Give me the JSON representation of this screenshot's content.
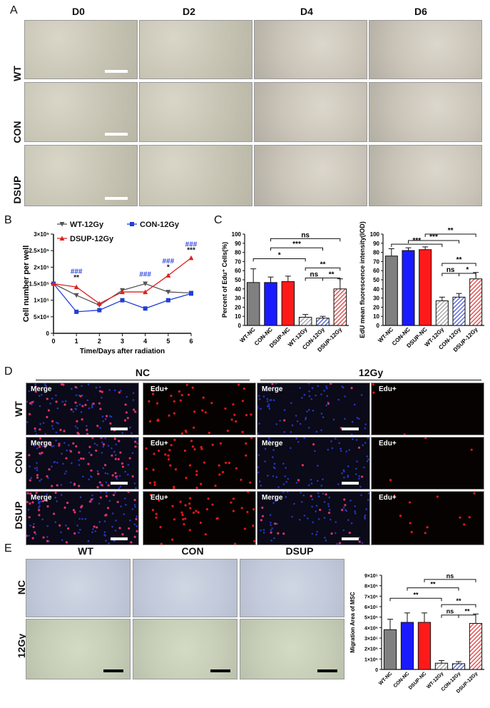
{
  "panels": {
    "A": {
      "letter": "A",
      "cols": [
        "D0",
        "D2",
        "D4",
        "D6"
      ],
      "rows": [
        "WT",
        "CON",
        "DSUP"
      ]
    },
    "B": {
      "letter": "B"
    },
    "C": {
      "letter": "C"
    },
    "D": {
      "letter": "D",
      "groups": [
        "NC",
        "12Gy"
      ],
      "rows": [
        "WT",
        "CON",
        "DSUP"
      ],
      "labels": [
        "Merge",
        "Edu+",
        "Merge",
        "Edu+"
      ]
    },
    "E": {
      "letter": "E",
      "cols": [
        "WT",
        "CON",
        "DSUP"
      ],
      "rows": [
        "NC",
        "12Gy"
      ]
    }
  },
  "chart_data": [
    {
      "id": "B",
      "type": "line",
      "xlabel": "Time/Days after radiation",
      "ylabel": "Cell number per well",
      "x": [
        0,
        1,
        2,
        3,
        4,
        5,
        6
      ],
      "xlim": [
        0,
        6
      ],
      "ylim": [
        0,
        300000
      ],
      "yticks": [
        "0",
        "5×10⁴",
        "1×10⁵",
        "1.5×10⁵",
        "2×10⁵",
        "2.5×10⁵",
        "3×10⁵"
      ],
      "ytick_values": [
        0,
        50000,
        100000,
        150000,
        200000,
        250000,
        300000
      ],
      "legend": "top",
      "series": [
        {
          "name": "WT-12Gy",
          "color": "#555555",
          "marker": "triangle-down",
          "values": [
            150000,
            115000,
            85000,
            130000,
            150000,
            125000,
            122000
          ]
        },
        {
          "name": "CON-12Gy",
          "color": "#1f3fd6",
          "marker": "square",
          "values": [
            150000,
            65000,
            70000,
            100000,
            75000,
            100000,
            120000
          ]
        },
        {
          "name": "DSUP-12Gy",
          "color": "#e02020",
          "marker": "triangle-up",
          "values": [
            150000,
            140000,
            90000,
            125000,
            125000,
            175000,
            228000
          ]
        }
      ],
      "annotations": [
        {
          "x": 1,
          "text": "###",
          "color": "#2a3fe0",
          "level": 180000
        },
        {
          "x": 1,
          "text": "**",
          "color": "#111111",
          "level": 162000
        },
        {
          "x": 4,
          "text": "###",
          "color": "#2a3fe0",
          "level": 172000
        },
        {
          "x": 5,
          "text": "###",
          "color": "#2a3fe0",
          "level": 212000
        },
        {
          "x": 5,
          "text": "*",
          "color": "#111111",
          "level": 193000
        },
        {
          "x": 6,
          "text": "###",
          "color": "#2a3fe0",
          "level": 262000
        },
        {
          "x": 6,
          "text": "***",
          "color": "#111111",
          "level": 245000
        }
      ]
    },
    {
      "id": "C1",
      "type": "bar",
      "ylabel": "Percent of Edu⁺ Cells(%)",
      "ylim": [
        0,
        100
      ],
      "yticks": [
        "0",
        "10",
        "20",
        "30",
        "40",
        "50",
        "60",
        "70",
        "80",
        "90",
        "100"
      ],
      "categories": [
        "WT-NC",
        "CON-NC",
        "DSUP-NC",
        "WT-12Gy",
        "CON-12Gy",
        "DSUP-12Gy"
      ],
      "values": [
        47,
        47,
        48,
        9,
        8,
        40
      ],
      "errors": [
        15,
        6,
        6,
        3,
        2,
        11
      ],
      "colors": [
        "#808080",
        "#1a1aff",
        "#ff1a1a",
        "#999999",
        "#3a4fd8",
        "#e03030"
      ],
      "hatched": [
        false,
        false,
        false,
        true,
        true,
        true
      ],
      "significance": [
        {
          "from": 1,
          "to": 5,
          "text": "ns",
          "level": 95
        },
        {
          "from": 1,
          "to": 4,
          "text": "***",
          "level": 85
        },
        {
          "from": 0,
          "to": 3,
          "text": "*",
          "level": 73
        },
        {
          "from": 3,
          "to": 5,
          "text": "**",
          "level": 63
        },
        {
          "from": 3,
          "to": 4,
          "text": "ns",
          "level": 52
        },
        {
          "from": 4,
          "to": 5,
          "text": "**",
          "level": 52
        }
      ]
    },
    {
      "id": "C2",
      "type": "bar",
      "ylabel": "EdU mean fluorescence intensity(IOD)",
      "ylim": [
        0,
        100
      ],
      "yticks": [
        "0",
        "10",
        "20",
        "30",
        "40",
        "50",
        "60",
        "70",
        "80",
        "90",
        "100"
      ],
      "categories": [
        "WT-NC",
        "CON-NC",
        "DSUP-NC",
        "WT-12Gy",
        "CON-12Gy",
        "DSUP-12Gy"
      ],
      "values": [
        76,
        82,
        83,
        27,
        31,
        51
      ],
      "errors": [
        8,
        3,
        3,
        4,
        4,
        7
      ],
      "colors": [
        "#808080",
        "#1a1aff",
        "#ff1a1a",
        "#999999",
        "#3a4fd8",
        "#e03030"
      ],
      "hatched": [
        false,
        false,
        false,
        true,
        true,
        true
      ],
      "significance": [
        {
          "from": 2,
          "to": 5,
          "text": "**",
          "level": 100
        },
        {
          "from": 1,
          "to": 4,
          "text": "***",
          "level": 93
        },
        {
          "from": 0,
          "to": 3,
          "text": "***",
          "level": 89
        },
        {
          "from": 3,
          "to": 5,
          "text": "**",
          "level": 68
        },
        {
          "from": 3,
          "to": 4,
          "text": "ns",
          "level": 57
        },
        {
          "from": 4,
          "to": 5,
          "text": "*",
          "level": 57
        }
      ]
    },
    {
      "id": "E",
      "type": "bar",
      "ylabel": "Migration Area of MSC",
      "ylim": [
        0,
        900000
      ],
      "yticks": [
        "0",
        "1×10⁵",
        "2×10⁵",
        "3×10⁵",
        "4×10⁵",
        "5×10⁵",
        "6×10⁵",
        "7×10⁵",
        "8×10⁵",
        "9×10⁵"
      ],
      "categories": [
        "WT-NC",
        "CON-NC",
        "DSUP-NC",
        "WT-12Gy",
        "CON-12Gy",
        "DSUP-12Gy"
      ],
      "values": [
        380000,
        450000,
        450000,
        60000,
        55000,
        440000
      ],
      "errors": [
        100000,
        90000,
        90000,
        25000,
        20000,
        90000
      ],
      "colors": [
        "#808080",
        "#1a1aff",
        "#ff1a1a",
        "#999999",
        "#3a4fd8",
        "#e03030"
      ],
      "hatched": [
        false,
        false,
        false,
        true,
        true,
        true
      ],
      "significance": [
        {
          "from": 2,
          "to": 5,
          "text": "ns",
          "level": 860000
        },
        {
          "from": 1,
          "to": 4,
          "text": "**",
          "level": 780000
        },
        {
          "from": 0,
          "to": 3,
          "text": "**",
          "level": 680000
        },
        {
          "from": 3,
          "to": 5,
          "text": "**",
          "level": 620000
        },
        {
          "from": 3,
          "to": 4,
          "text": "ns",
          "level": 520000
        },
        {
          "from": 4,
          "to": 5,
          "text": "**",
          "level": 520000
        }
      ]
    }
  ]
}
